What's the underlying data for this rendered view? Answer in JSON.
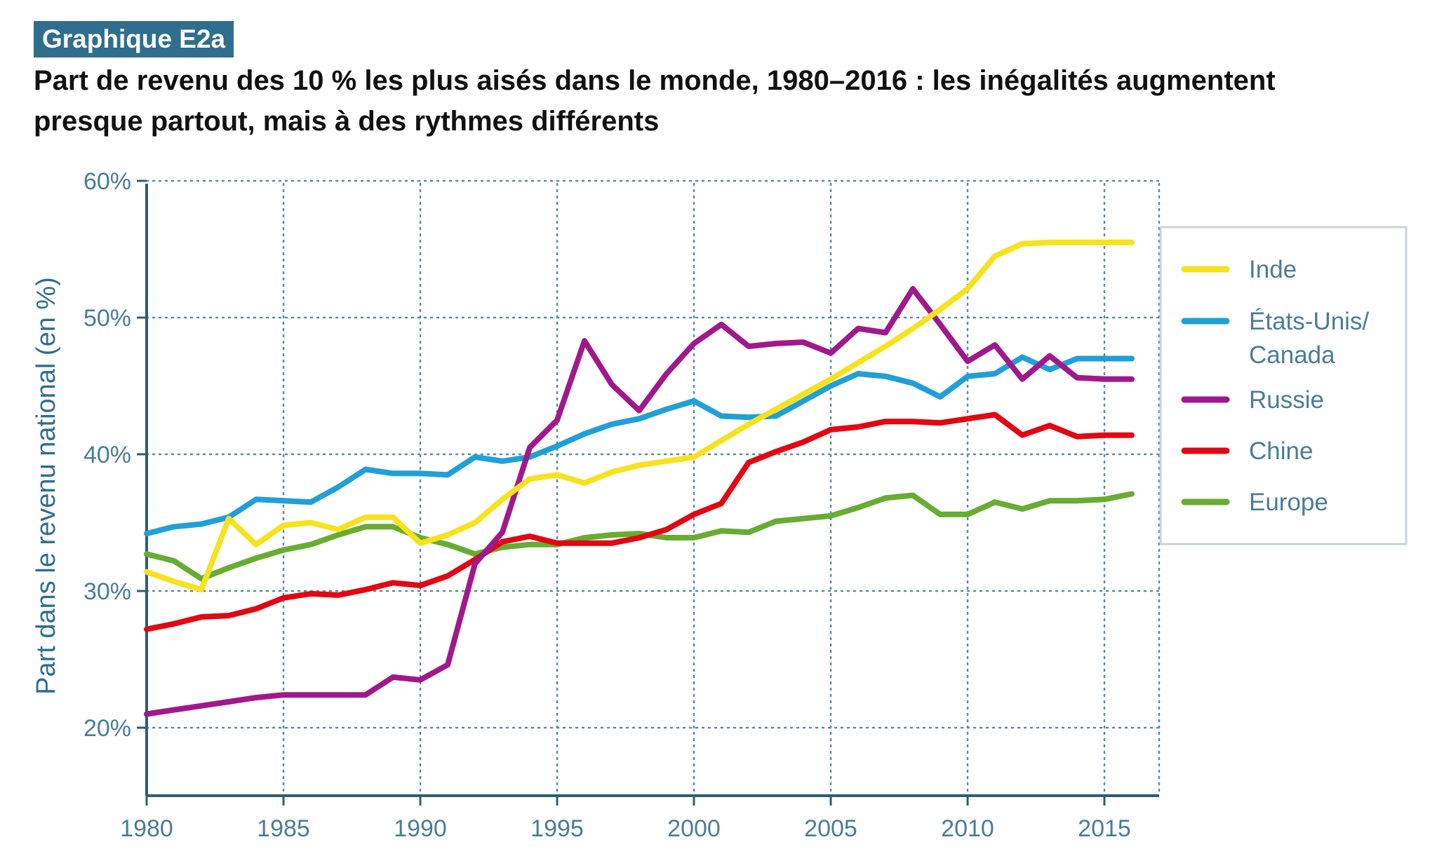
{
  "header": {
    "badge": "Graphique E2a",
    "title_line1": "Part de revenu des 10 % les plus aisés dans le monde, 1980–2016 : les inégalités augmentent",
    "title_line2": "presque partout, mais à des rythmes différents"
  },
  "chart_data": {
    "type": "line",
    "title": "Part de revenu des 10 % les plus aisés dans le monde, 1980–2016 : les inégalités augmentent presque partout, mais à des rythmes différents",
    "xlabel": "",
    "ylabel": "Part dans le revenu national (en %)",
    "xlim": [
      1980,
      2017
    ],
    "ylim": [
      15,
      60
    ],
    "xticks": [
      1980,
      1985,
      1990,
      1995,
      2000,
      2005,
      2010,
      2015
    ],
    "xtick_labels": [
      "1980",
      "1985",
      "1990",
      "1995",
      "2000",
      "2005",
      "2010",
      "2015"
    ],
    "yticks": [
      20,
      30,
      40,
      50,
      60
    ],
    "ytick_labels": [
      "20%",
      "30%",
      "40%",
      "50%",
      "60%"
    ],
    "grid": true,
    "legend_position": "right",
    "x": [
      1980,
      1981,
      1982,
      1983,
      1984,
      1985,
      1986,
      1987,
      1988,
      1989,
      1990,
      1991,
      1992,
      1993,
      1994,
      1995,
      1996,
      1997,
      1998,
      1999,
      2000,
      2001,
      2002,
      2003,
      2004,
      2005,
      2006,
      2007,
      2008,
      2009,
      2010,
      2011,
      2012,
      2013,
      2014,
      2015,
      2016
    ],
    "series": [
      {
        "name": "Inde",
        "color": "#f7e21c",
        "values": [
          31.4,
          30.7,
          30.1,
          35.3,
          33.4,
          34.8,
          35.0,
          34.5,
          35.4,
          35.4,
          33.5,
          34.1,
          35.0,
          36.7,
          38.2,
          38.5,
          37.9,
          38.7,
          39.2,
          39.5,
          39.8,
          41.0,
          42.2,
          43.3,
          44.4,
          45.5,
          46.7,
          47.9,
          49.2,
          50.6,
          52.1,
          54.5,
          55.4,
          55.5,
          55.5,
          55.5,
          55.5
        ]
      },
      {
        "name": "États-Unis/ Canada",
        "color": "#1fa0d8",
        "values": [
          34.2,
          34.7,
          34.9,
          35.4,
          36.7,
          36.6,
          36.5,
          37.6,
          38.9,
          38.6,
          38.6,
          38.5,
          39.8,
          39.5,
          39.8,
          40.6,
          41.5,
          42.2,
          42.6,
          43.3,
          43.9,
          42.8,
          42.7,
          42.8,
          43.9,
          45.0,
          45.9,
          45.7,
          45.2,
          44.2,
          45.7,
          45.9,
          47.1,
          46.2,
          47.0,
          47.0,
          47.0
        ]
      },
      {
        "name": "Russie",
        "color": "#a0198c",
        "values": [
          21.0,
          21.3,
          21.6,
          21.9,
          22.2,
          22.4,
          22.4,
          22.4,
          22.4,
          23.7,
          23.5,
          24.6,
          32.0,
          34.3,
          40.5,
          42.5,
          48.3,
          45.1,
          43.2,
          45.9,
          48.1,
          49.5,
          47.9,
          48.1,
          48.2,
          47.4,
          49.2,
          48.9,
          52.1,
          49.5,
          46.8,
          48.0,
          45.5,
          47.2,
          45.6,
          45.5,
          45.5
        ]
      },
      {
        "name": "Chine",
        "color": "#e30613",
        "values": [
          27.2,
          27.6,
          28.1,
          28.2,
          28.7,
          29.5,
          29.8,
          29.7,
          30.1,
          30.6,
          30.4,
          31.1,
          32.3,
          33.6,
          34.0,
          33.5,
          33.5,
          33.5,
          33.9,
          34.5,
          35.6,
          36.4,
          39.4,
          40.2,
          40.9,
          41.8,
          42.0,
          42.4,
          42.4,
          42.3,
          42.6,
          42.9,
          41.4,
          42.1,
          41.3,
          41.4,
          41.4
        ]
      },
      {
        "name": "Europe",
        "color": "#66ad32",
        "values": [
          32.7,
          32.2,
          30.9,
          31.7,
          32.4,
          33.0,
          33.4,
          34.1,
          34.7,
          34.7,
          33.9,
          33.4,
          32.7,
          33.2,
          33.4,
          33.4,
          33.9,
          34.1,
          34.2,
          33.9,
          33.9,
          34.4,
          34.3,
          35.1,
          35.3,
          35.5,
          36.1,
          36.8,
          37.0,
          35.6,
          35.6,
          36.5,
          36.0,
          36.6,
          36.6,
          36.7,
          37.1
        ]
      }
    ]
  }
}
